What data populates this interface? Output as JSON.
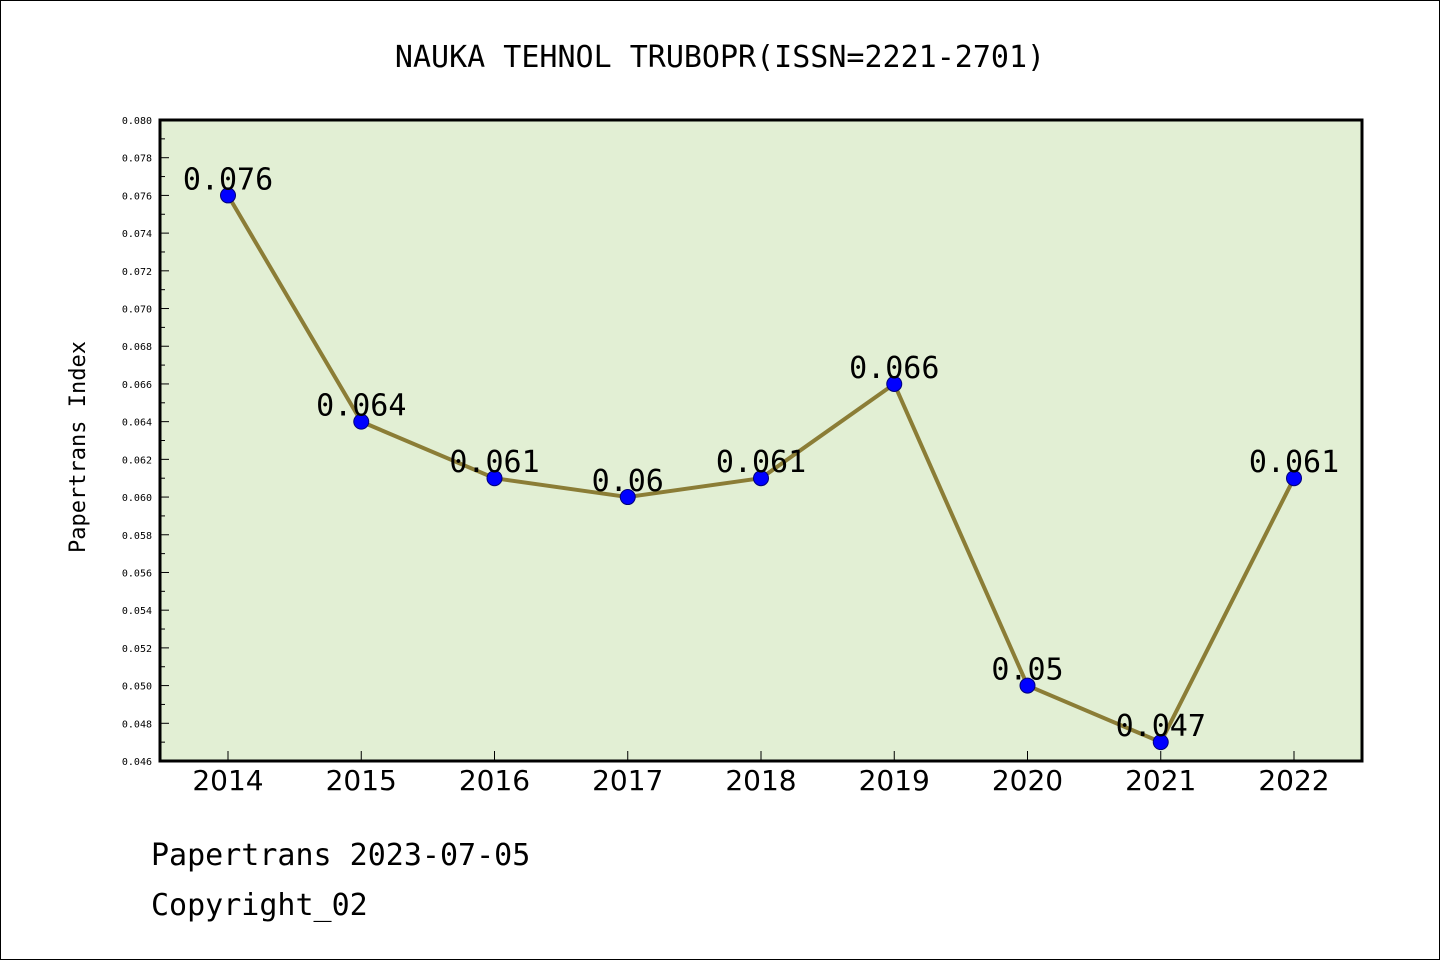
{
  "chart_data": {
    "type": "line",
    "title": "NAUKA TEHNOL TRUBOPR(ISSN=2221-2701)",
    "xlabel": "",
    "ylabel": "Papertrans Index",
    "categories": [
      "2014",
      "2015",
      "2016",
      "2017",
      "2018",
      "2019",
      "2020",
      "2021",
      "2022"
    ],
    "values": [
      0.076,
      0.064,
      0.061,
      0.06,
      0.061,
      0.066,
      0.05,
      0.047,
      0.061
    ],
    "data_labels": [
      "0.076",
      "0.064",
      "0.061",
      "0.06",
      "0.061",
      "0.066",
      "0.05",
      "0.047",
      "0.061"
    ],
    "ylim": [
      0.046,
      0.08
    ],
    "yticks": [
      "0.046",
      "0.048",
      "0.050",
      "0.052",
      "0.054",
      "0.056",
      "0.058",
      "0.060",
      "0.062",
      "0.064",
      "0.066",
      "0.068",
      "0.070",
      "0.072",
      "0.074",
      "0.076",
      "0.078",
      "0.080"
    ],
    "grid": false,
    "legend": "none",
    "colors": {
      "plot_background": "#e2efd4",
      "line": "#8b7d36",
      "marker": "#0000ff",
      "marker_edge": "#00007a"
    }
  },
  "footer": {
    "line1": "Papertrans 2023-07-05",
    "line2": "Copyright_02"
  }
}
